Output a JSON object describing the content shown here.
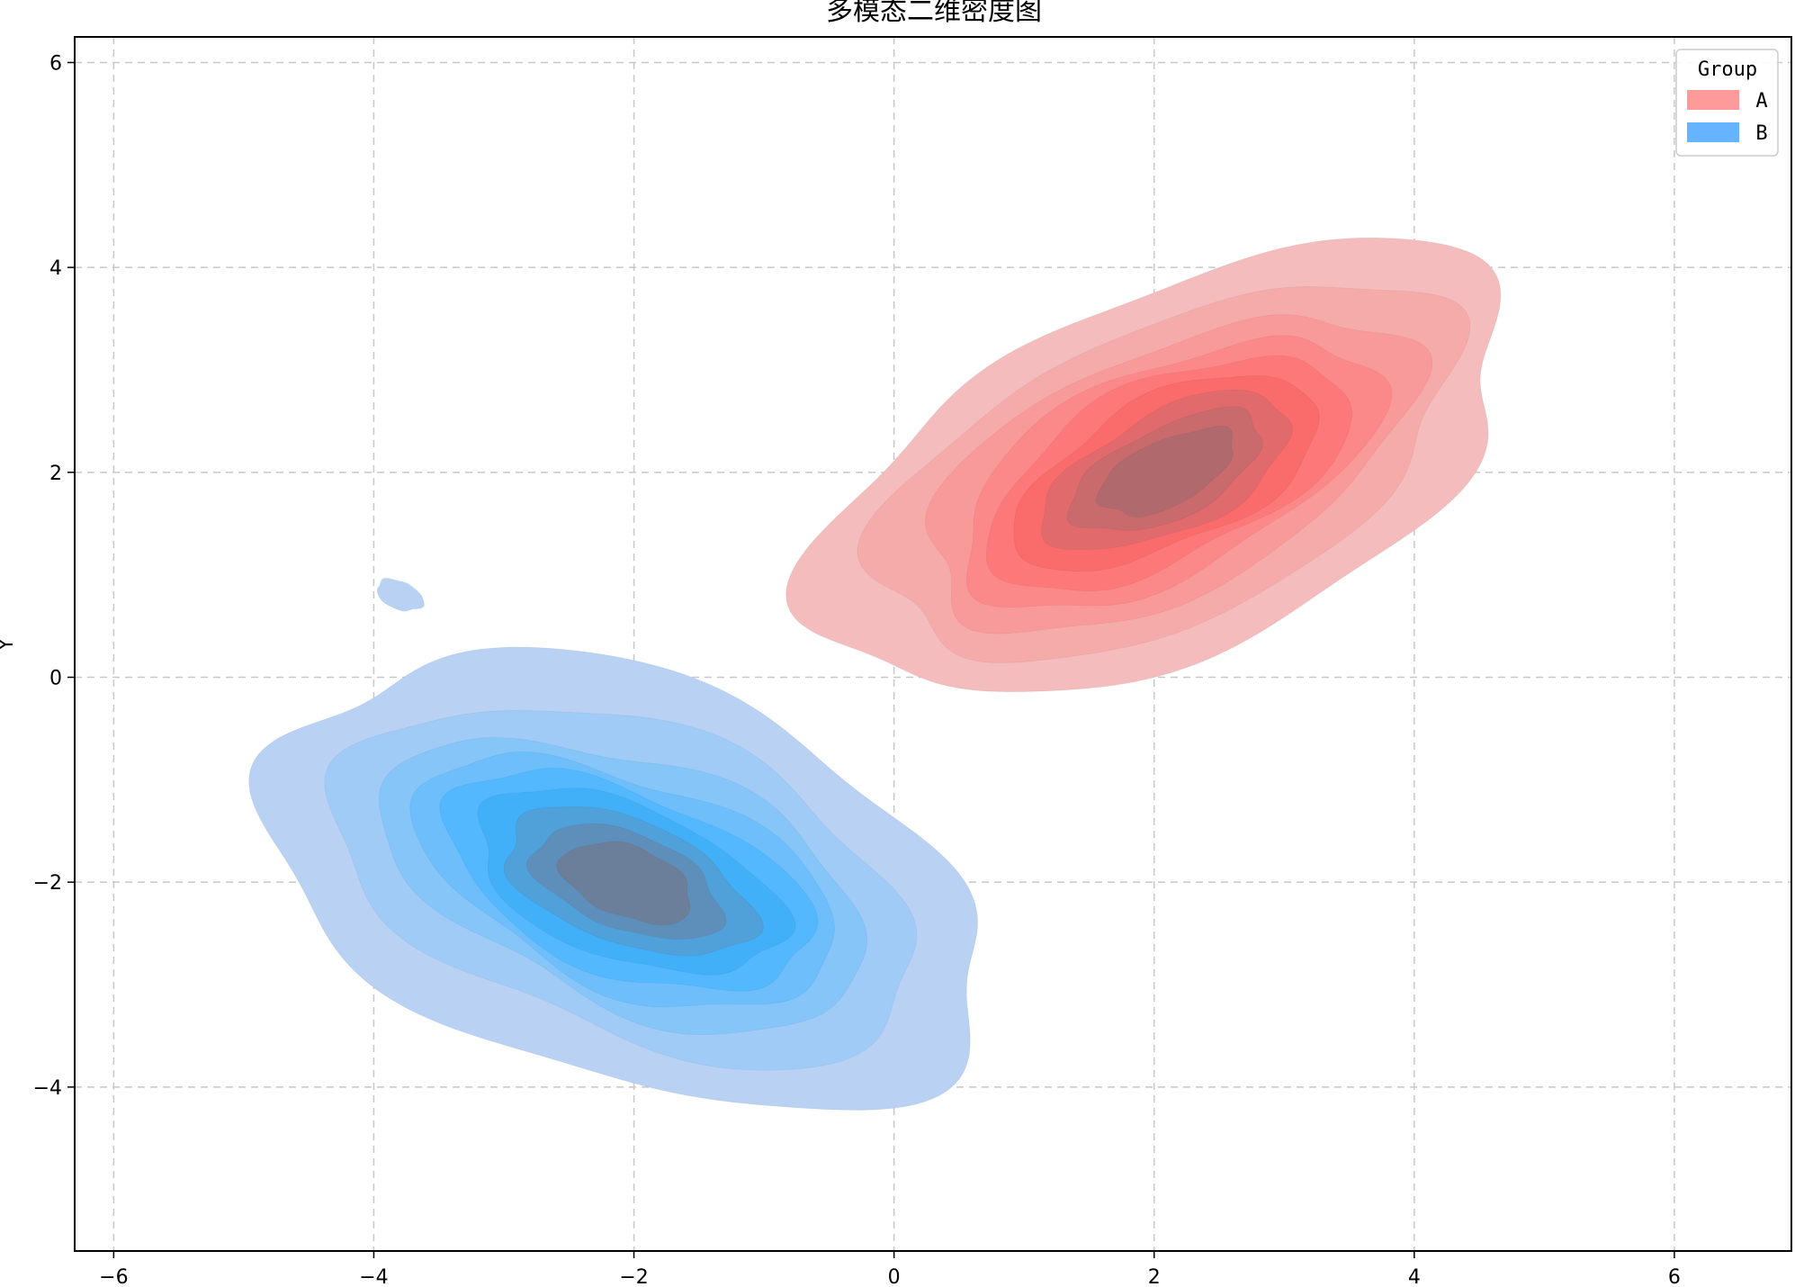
{
  "chart_data": {
    "type": "kde2d",
    "title": "多模态二维密度图",
    "xlabel": "",
    "ylabel": "Y",
    "xlim": [
      -6.3,
      6.9
    ],
    "ylim": [
      -5.6,
      6.25
    ],
    "xticks": [
      -6,
      -4,
      -2,
      0,
      2,
      4,
      6
    ],
    "yticks": [
      -4,
      -2,
      0,
      2,
      4,
      6
    ],
    "xtick_labels": [
      "−6",
      "−4",
      "−2",
      "0",
      "2",
      "4",
      "6"
    ],
    "ytick_labels": [
      "−4",
      "−2",
      "0",
      "2",
      "4",
      "6"
    ],
    "grid": true,
    "grid_style": "dashed",
    "legend": {
      "title": "Group",
      "position": "top-right",
      "entries": [
        {
          "label": "A",
          "color": "#ff9a9a"
        },
        {
          "label": "B",
          "color": "#66b3ff"
        }
      ]
    },
    "series": [
      {
        "name": "A",
        "center": [
          2.1,
          2.0
        ],
        "orientation_deg": 35,
        "color_light": "#f4bcbc",
        "color_mid": "#ff6b6b",
        "color_dark": "#b06a6e",
        "levels": [
          {
            "rx": 3.05,
            "ry": 1.65
          },
          {
            "rx": 2.55,
            "ry": 1.35
          },
          {
            "rx": 2.15,
            "ry": 1.12
          },
          {
            "rx": 1.85,
            "ry": 0.95
          },
          {
            "rx": 1.6,
            "ry": 0.82
          },
          {
            "rx": 1.35,
            "ry": 0.68
          },
          {
            "rx": 1.1,
            "ry": 0.55
          },
          {
            "rx": 0.85,
            "ry": 0.42
          },
          {
            "rx": 0.6,
            "ry": 0.3
          }
        ]
      },
      {
        "name": "B",
        "center": [
          -2.05,
          -2.0
        ],
        "orientation_deg": -30,
        "color_light": "#b9d1f3",
        "color_mid": "#3fb3ff",
        "color_dark": "#6c7f9a",
        "levels": [
          {
            "rx": 3.0,
            "ry": 1.9
          },
          {
            "rx": 2.45,
            "ry": 1.45
          },
          {
            "rx": 2.05,
            "ry": 1.15
          },
          {
            "rx": 1.78,
            "ry": 0.98
          },
          {
            "rx": 1.55,
            "ry": 0.85
          },
          {
            "rx": 1.3,
            "ry": 0.72
          },
          {
            "rx": 1.05,
            "ry": 0.58
          },
          {
            "rx": 0.8,
            "ry": 0.45
          },
          {
            "rx": 0.55,
            "ry": 0.33
          }
        ],
        "islands": [
          {
            "x": -3.8,
            "y": 0.8,
            "rx": 0.2,
            "ry": 0.13,
            "angle_deg": -35
          }
        ]
      }
    ]
  }
}
